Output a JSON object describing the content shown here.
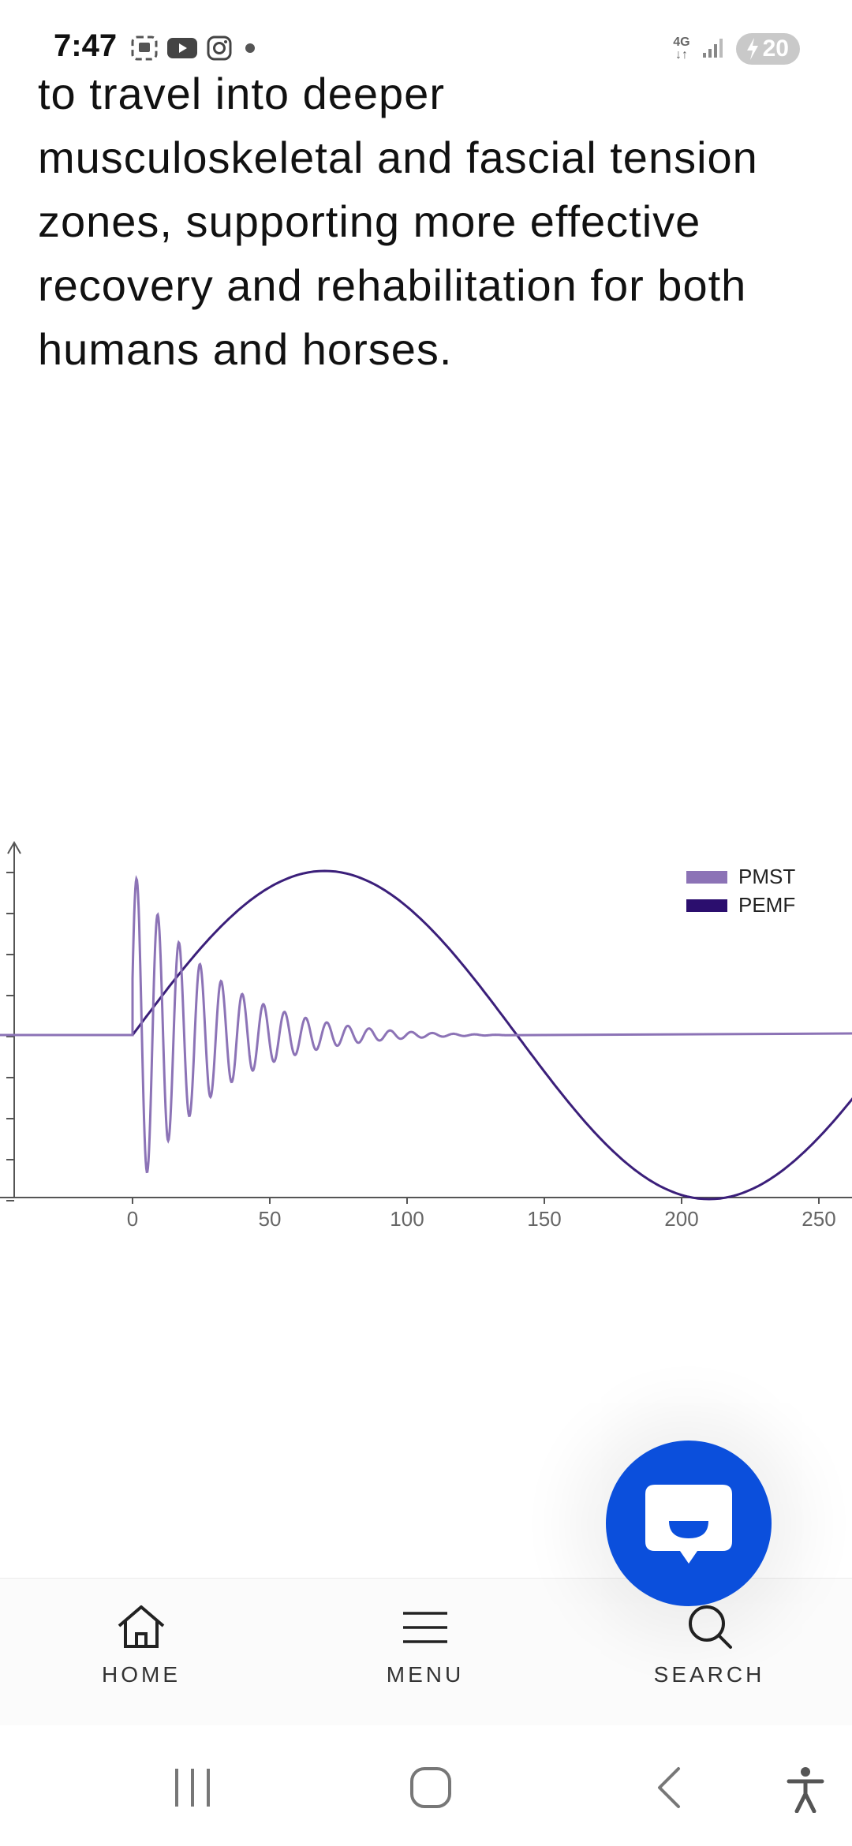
{
  "status_bar": {
    "time": "7:47",
    "network": "4G",
    "battery": "20",
    "icons": [
      "screenshot-icon",
      "youtube-icon",
      "instagram-icon",
      "dot-icon",
      "signal-icon",
      "battery-icon"
    ]
  },
  "article": {
    "lines": [
      "to travel into deeper",
      "musculoskeletal and fascial tension",
      "zones, supporting more effective",
      "recovery and rehabilitation for both",
      "humans and horses."
    ]
  },
  "chart_data": {
    "type": "line",
    "x_ticks": [
      "0",
      "50",
      "100",
      "150",
      "200",
      "250"
    ],
    "xlim": [
      -45,
      265
    ],
    "series": [
      {
        "name": "PMST",
        "color": "#8c73b6",
        "description_points": {
          "x": [
            -45,
            0,
            3,
            6,
            9,
            12,
            15,
            18,
            21,
            24,
            27,
            30,
            35,
            40,
            50,
            60,
            80,
            100,
            120,
            130,
            135,
            265
          ],
          "y": [
            0,
            0,
            1.0,
            -0.8,
            0.82,
            -0.7,
            0.68,
            -0.6,
            0.55,
            -0.5,
            0.48,
            -0.42,
            0.38,
            -0.34,
            0.27,
            0.2,
            0.15,
            0.09,
            0.05,
            0.02,
            0,
            0
          ]
        }
      },
      {
        "name": "PEMF",
        "color": "#3b1f7a",
        "description_points": {
          "x": [
            -45,
            0,
            70,
            140,
            210,
            265
          ],
          "y": [
            0,
            0,
            1.0,
            0,
            -1.0,
            -0.35
          ]
        }
      }
    ],
    "legend_position": "top-right",
    "grid": false
  },
  "fab": {
    "icon": "chat-icon"
  },
  "bottom_nav": {
    "items": [
      {
        "label": "HOME",
        "icon": "home-icon"
      },
      {
        "label": "MENU",
        "icon": "menu-icon"
      },
      {
        "label": "SEARCH",
        "icon": "search-icon"
      }
    ]
  },
  "system_nav": {
    "icons": [
      "recent-apps-icon",
      "home-button-icon",
      "back-icon",
      "accessibility-icon"
    ]
  }
}
